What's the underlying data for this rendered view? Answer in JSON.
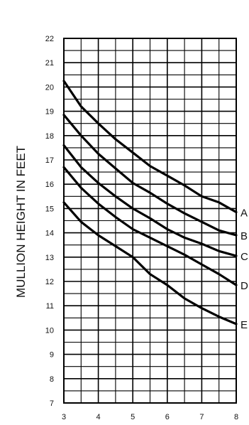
{
  "chart_data": {
    "type": "line",
    "title": "",
    "xlabel": "",
    "ylabel": "MULLION HEIGHT IN FEET",
    "xlim": [
      3,
      8
    ],
    "ylim": [
      7,
      22
    ],
    "x_ticks": [
      3,
      4,
      5,
      6,
      7,
      8
    ],
    "y_ticks": [
      7,
      8,
      9,
      10,
      11,
      12,
      13,
      14,
      15,
      16,
      17,
      18,
      19,
      20,
      21,
      22
    ],
    "grid": true,
    "x_minor_step": 0.5,
    "y_minor_step": 0.5,
    "line_color": "#000000",
    "series": [
      {
        "name": "A",
        "x": [
          3,
          3.5,
          4,
          4.5,
          5,
          5.5,
          6,
          6.5,
          7,
          7.5,
          8
        ],
        "y": [
          20.25,
          19.2,
          18.5,
          17.85,
          17.3,
          16.75,
          16.35,
          15.95,
          15.5,
          15.25,
          14.85
        ]
      },
      {
        "name": "B",
        "x": [
          3,
          3.5,
          4,
          4.5,
          5,
          5.5,
          6,
          6.5,
          7,
          7.5,
          8
        ],
        "y": [
          18.85,
          18.0,
          17.25,
          16.65,
          16.05,
          15.65,
          15.2,
          14.8,
          14.45,
          14.1,
          13.9
        ]
      },
      {
        "name": "C",
        "x": [
          3,
          3.5,
          4,
          4.5,
          5,
          5.5,
          6,
          6.5,
          7,
          7.5,
          8
        ],
        "y": [
          17.6,
          16.7,
          16.05,
          15.5,
          15.0,
          14.6,
          14.15,
          13.8,
          13.55,
          13.25,
          13.05
        ]
      },
      {
        "name": "D",
        "x": [
          3,
          3.5,
          4,
          4.5,
          5,
          5.5,
          6,
          6.5,
          7,
          7.5,
          8
        ],
        "y": [
          16.7,
          15.85,
          15.2,
          14.65,
          14.15,
          13.8,
          13.45,
          13.1,
          12.7,
          12.3,
          11.85
        ]
      },
      {
        "name": "E",
        "x": [
          3,
          3.5,
          4,
          4.5,
          5,
          5.5,
          6,
          6.5,
          7,
          7.5,
          8
        ],
        "y": [
          15.25,
          14.45,
          13.9,
          13.45,
          13.0,
          12.3,
          11.85,
          11.3,
          10.9,
          10.55,
          10.25
        ]
      }
    ]
  }
}
